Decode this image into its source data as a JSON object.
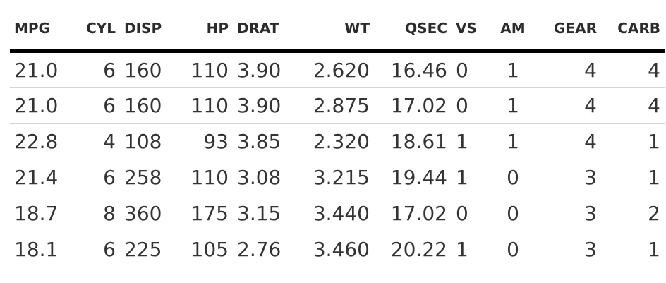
{
  "table": {
    "headers": [
      "MPG",
      "CYL",
      "DISP",
      "HP",
      "DRAT",
      "WT",
      "QSEC",
      "VS",
      "AM",
      "GEAR",
      "CARB"
    ],
    "rows": [
      [
        "21.0",
        "6",
        "160",
        "110",
        "3.90",
        "2.620",
        "16.46",
        "0",
        "1",
        "4",
        "4"
      ],
      [
        "21.0",
        "6",
        "160",
        "110",
        "3.90",
        "2.875",
        "17.02",
        "0",
        "1",
        "4",
        "4"
      ],
      [
        "22.8",
        "4",
        "108",
        "93",
        "3.85",
        "2.320",
        "18.61",
        "1",
        "1",
        "4",
        "1"
      ],
      [
        "21.4",
        "6",
        "258",
        "110",
        "3.08",
        "3.215",
        "19.44",
        "1",
        "0",
        "3",
        "1"
      ],
      [
        "18.7",
        "8",
        "360",
        "175",
        "3.15",
        "3.440",
        "17.02",
        "0",
        "0",
        "3",
        "2"
      ],
      [
        "18.1",
        "6",
        "225",
        "105",
        "2.76",
        "3.460",
        "20.22",
        "1",
        "0",
        "3",
        "1"
      ]
    ]
  }
}
